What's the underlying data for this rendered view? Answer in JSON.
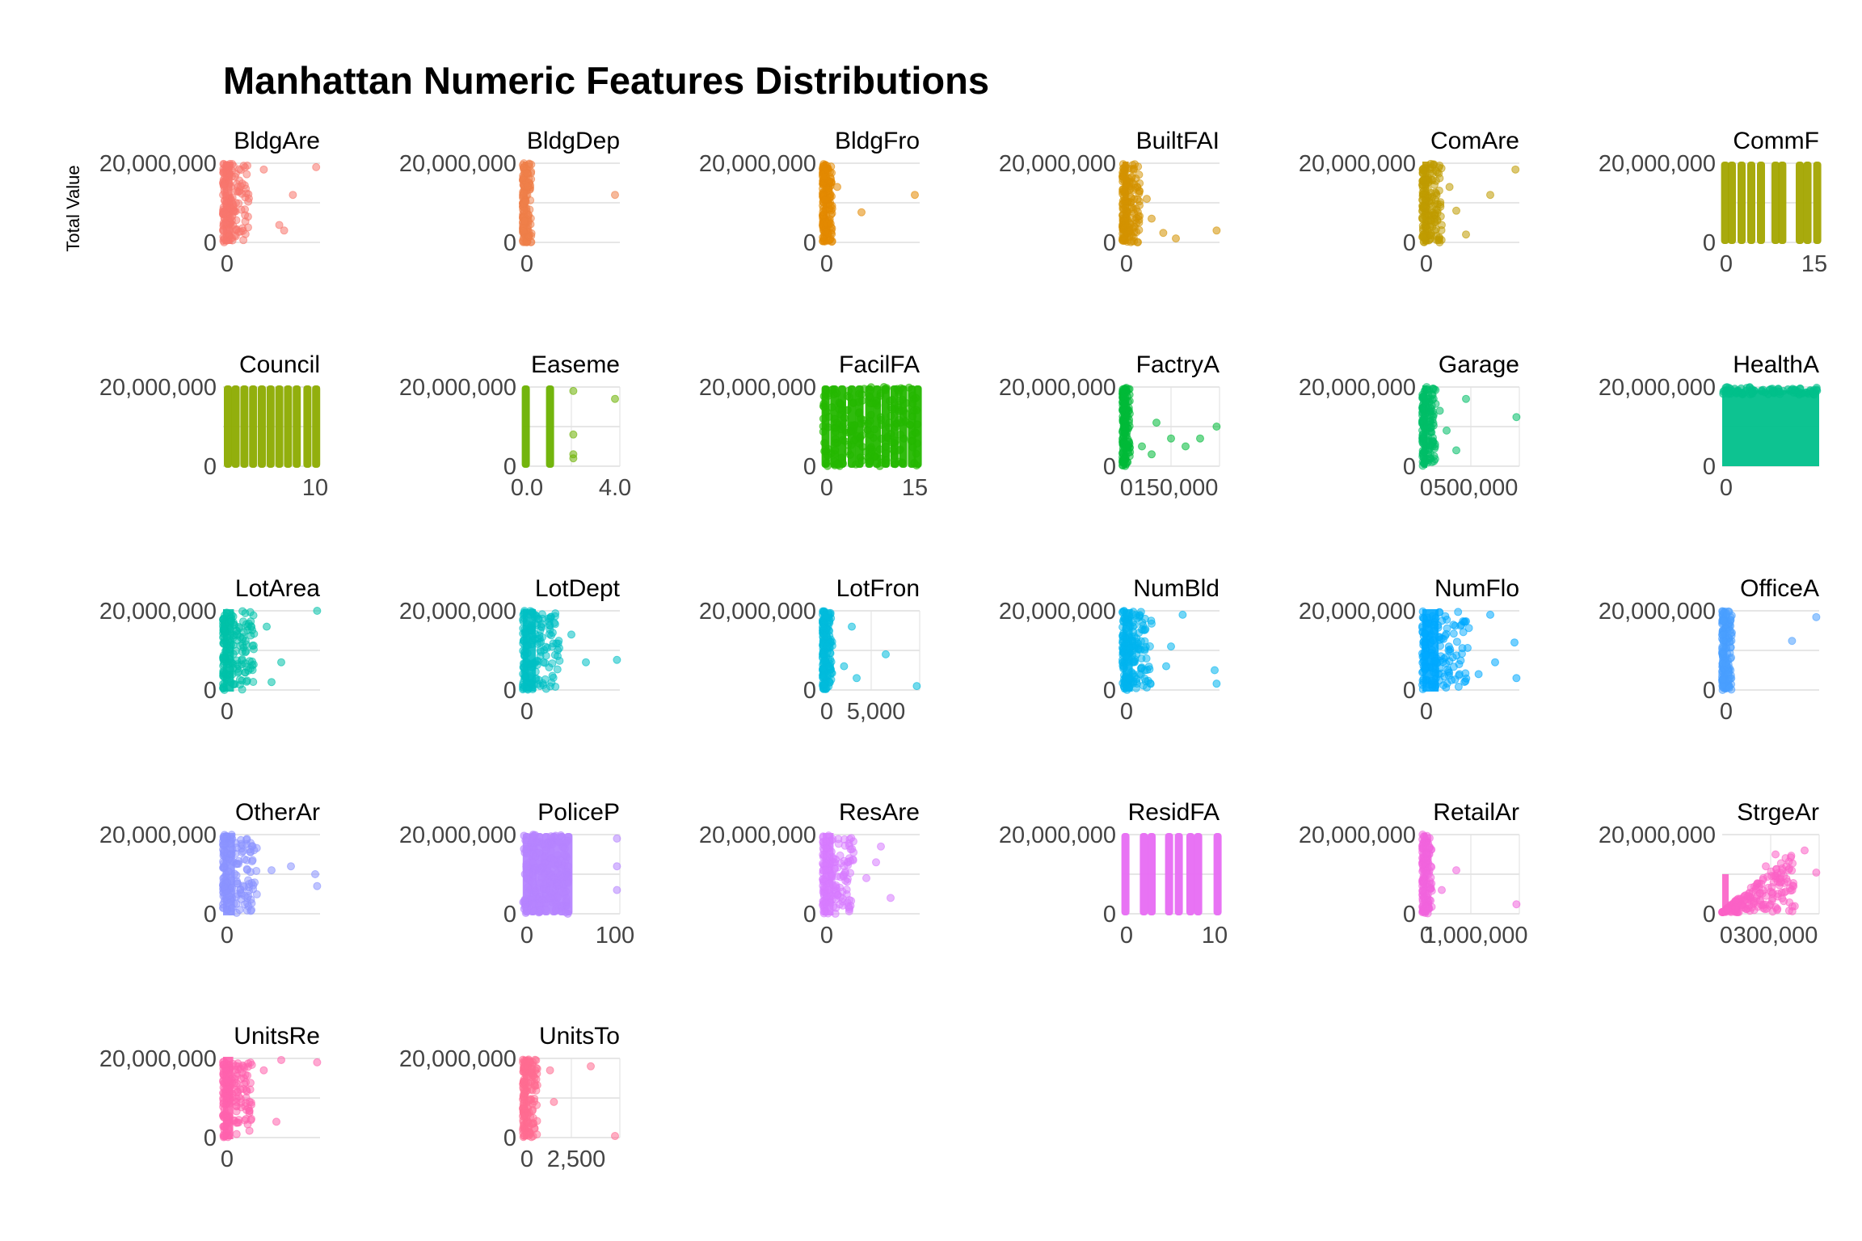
{
  "chart_data": {
    "type": "scatter",
    "title": "Manhattan Numeric Features Distributions",
    "ylabel": "Total Value",
    "y_tick_labels": [
      "0",
      "20,000,000"
    ],
    "ylim": [
      0,
      20000000
    ],
    "grid": true,
    "facets": [
      {
        "label": "BldgAre",
        "color": "#F8766D",
        "x_ticks": [
          "0"
        ],
        "shape": "dense-left",
        "band": 0.28,
        "outliers": [
          [
            0.42,
            0.92
          ],
          [
            0.72,
            0.6
          ],
          [
            0.58,
            0.22
          ],
          [
            0.96,
            0.95
          ],
          [
            0.63,
            0.15
          ]
        ]
      },
      {
        "label": "BldgDep",
        "color": "#EF7F49",
        "x_ticks": [
          "0"
        ],
        "shape": "dense-left",
        "band": 0.09,
        "outliers": [
          [
            0.95,
            0.6
          ]
        ]
      },
      {
        "label": "BldgFro",
        "color": "#E38900",
        "x_ticks": [
          "0"
        ],
        "shape": "dense-left",
        "band": 0.1,
        "outliers": [
          [
            0.95,
            0.6
          ],
          [
            0.4,
            0.38
          ],
          [
            0.15,
            0.7
          ]
        ]
      },
      {
        "label": "BuiltFAI",
        "color": "#D39200",
        "x_ticks": [
          "0"
        ],
        "shape": "dense-left",
        "band": 0.18,
        "outliers": [
          [
            0.3,
            0.3
          ],
          [
            0.42,
            0.12
          ],
          [
            0.55,
            0.05
          ],
          [
            0.97,
            0.15
          ],
          [
            0.25,
            0.55
          ]
        ]
      },
      {
        "label": "ComAre",
        "color": "#C09B00",
        "x_ticks": [
          "0"
        ],
        "shape": "dense-left",
        "band": 0.2,
        "outliers": [
          [
            0.7,
            0.6
          ],
          [
            0.96,
            0.92
          ],
          [
            0.45,
            0.1
          ],
          [
            0.28,
            0.7
          ],
          [
            0.35,
            0.4
          ]
        ]
      },
      {
        "label": "CommF",
        "color": "#A3A500",
        "x_ticks": [
          "0",
          "15"
        ],
        "shape": "columns",
        "cols": [
          0.03,
          0.1,
          0.2,
          0.3,
          0.4,
          0.55,
          0.62,
          0.8,
          0.88,
          0.98
        ]
      },
      {
        "label": "Council",
        "color": "#8CAB00",
        "x_ticks": [
          "10"
        ],
        "shape": "columns",
        "cols": [
          0.05,
          0.13,
          0.22,
          0.31,
          0.4,
          0.49,
          0.58,
          0.67,
          0.76,
          0.87,
          0.96
        ]
      },
      {
        "label": "Easeme",
        "color": "#6BB100",
        "x_ticks": [
          "0.0",
          "4.0"
        ],
        "shape": "columns",
        "cols": [
          0.03,
          0.28
        ],
        "outliers": [
          [
            0.52,
            0.95
          ],
          [
            0.95,
            0.85
          ],
          [
            0.52,
            0.4
          ],
          [
            0.52,
            0.15
          ],
          [
            0.52,
            0.1
          ]
        ]
      },
      {
        "label": "FacilFA",
        "color": "#24B700",
        "x_ticks": [
          "0",
          "15"
        ],
        "shape": "dense-cols",
        "cols": [
          0.03,
          0.12,
          0.2,
          0.3,
          0.38,
          0.48,
          0.56,
          0.65,
          0.74,
          0.83,
          0.92,
          0.98
        ]
      },
      {
        "label": "FactryA",
        "color": "#00BA38",
        "x_ticks": [
          "0",
          "150,000"
        ],
        "shape": "dense-left",
        "band": 0.08,
        "outliers": [
          [
            0.35,
            0.55
          ],
          [
            0.5,
            0.35
          ],
          [
            0.65,
            0.25
          ],
          [
            0.8,
            0.35
          ],
          [
            0.97,
            0.5
          ],
          [
            0.3,
            0.15
          ],
          [
            0.2,
            0.25
          ]
        ]
      },
      {
        "label": "Garage",
        "color": "#00BE67",
        "x_ticks": [
          "0",
          "500,000"
        ],
        "shape": "dense-left",
        "band": 0.14,
        "outliers": [
          [
            0.45,
            0.85
          ],
          [
            0.97,
            0.62
          ],
          [
            0.25,
            0.45
          ],
          [
            0.35,
            0.2
          ],
          [
            0.18,
            0.7
          ]
        ]
      },
      {
        "label": "HealthA",
        "color": "#00C08B",
        "x_ticks": [
          "0"
        ],
        "shape": "solid-fill"
      },
      {
        "label": "LotArea",
        "color": "#00C1A9",
        "x_ticks": [
          "0"
        ],
        "shape": "dense-left",
        "band": 0.32,
        "outliers": [
          [
            0.6,
            0.35
          ],
          [
            0.97,
            1.0
          ],
          [
            0.5,
            0.1
          ],
          [
            0.45,
            0.8
          ]
        ]
      },
      {
        "label": "LotDept",
        "color": "#00BFC4",
        "x_ticks": [
          "0"
        ],
        "shape": "dense-left",
        "band": 0.38,
        "outliers": [
          [
            0.65,
            0.35
          ],
          [
            0.97,
            0.38
          ],
          [
            0.5,
            0.7
          ]
        ]
      },
      {
        "label": "LotFron",
        "color": "#00BBDC",
        "x_ticks": [
          "0",
          "5,000"
        ],
        "shape": "dense-left",
        "band": 0.1,
        "outliers": [
          [
            0.3,
            0.8
          ],
          [
            0.65,
            0.45
          ],
          [
            0.97,
            0.05
          ],
          [
            0.35,
            0.15
          ],
          [
            0.22,
            0.3
          ]
        ]
      },
      {
        "label": "NumBld",
        "color": "#00B4EF",
        "x_ticks": [
          "0"
        ],
        "shape": "dense-left",
        "band": 0.3,
        "outliers": [
          [
            0.5,
            0.55
          ],
          [
            0.62,
            0.95
          ],
          [
            0.95,
            0.25
          ],
          [
            0.97,
            0.08
          ],
          [
            0.45,
            0.3
          ]
        ]
      },
      {
        "label": "NumFlo",
        "color": "#00A9FF",
        "x_ticks": [
          "0"
        ],
        "shape": "dense-left",
        "band": 0.48,
        "outliers": [
          [
            0.7,
            0.95
          ],
          [
            0.75,
            0.35
          ],
          [
            0.95,
            0.6
          ],
          [
            0.97,
            0.15
          ],
          [
            0.58,
            0.2
          ]
        ]
      },
      {
        "label": "OfficeA",
        "color": "#4A9FFF",
        "x_ticks": [
          "0"
        ],
        "shape": "dense-left",
        "band": 0.1,
        "outliers": [
          [
            0.72,
            0.62
          ],
          [
            0.97,
            0.92
          ]
        ]
      },
      {
        "label": "OtherAr",
        "color": "#8B93FF",
        "x_ticks": [
          "0"
        ],
        "shape": "dense-left",
        "band": 0.35,
        "outliers": [
          [
            0.7,
            0.6
          ],
          [
            0.95,
            0.5
          ],
          [
            0.97,
            0.35
          ],
          [
            0.5,
            0.55
          ]
        ]
      },
      {
        "label": "PoliceP",
        "color": "#B584FF",
        "x_ticks": [
          "0",
          "100"
        ],
        "shape": "dense-cols",
        "cols": [
          0.04,
          0.1,
          0.17,
          0.24,
          0.32,
          0.4,
          0.47
        ],
        "outliers": [
          [
            0.45,
            0.5
          ],
          [
            0.97,
            0.95
          ],
          [
            0.97,
            0.6
          ],
          [
            0.97,
            0.3
          ],
          [
            0.45,
            0.1
          ]
        ]
      },
      {
        "label": "ResAre",
        "color": "#D77BFF",
        "x_ticks": [
          "0"
        ],
        "shape": "dense-left",
        "band": 0.32,
        "outliers": [
          [
            0.6,
            0.85
          ],
          [
            0.7,
            0.2
          ],
          [
            0.45,
            0.45
          ],
          [
            0.55,
            0.65
          ]
        ]
      },
      {
        "label": "ResidFA",
        "color": "#E76BF3",
        "x_ticks": [
          "0",
          "10"
        ],
        "shape": "columns",
        "cols": [
          0.03,
          0.22,
          0.3,
          0.48,
          0.58,
          0.7,
          0.78,
          0.98
        ]
      },
      {
        "label": "RetailAr",
        "color": "#F164DD",
        "x_ticks": [
          "0",
          "1,000,000"
        ],
        "shape": "dense-left",
        "band": 0.1,
        "outliers": [
          [
            0.35,
            0.55
          ],
          [
            0.97,
            0.12
          ],
          [
            0.2,
            0.3
          ]
        ]
      },
      {
        "label": "StrgeAr",
        "color": "#FB61C6",
        "x_ticks": [
          "0",
          "300,000"
        ],
        "shape": "rising-cloud",
        "outliers": [
          [
            0.97,
            0.52
          ],
          [
            0.85,
            0.8
          ],
          [
            0.55,
            0.75
          ],
          [
            0.45,
            0.6
          ]
        ]
      },
      {
        "label": "UnitsRe",
        "color": "#FF62AD",
        "x_ticks": [
          "0"
        ],
        "shape": "dense-left",
        "band": 0.3,
        "outliers": [
          [
            0.6,
            0.98
          ],
          [
            0.55,
            0.2
          ],
          [
            0.97,
            0.95
          ],
          [
            0.42,
            0.85
          ]
        ]
      },
      {
        "label": "UnitsTo",
        "color": "#FF6C91",
        "x_ticks": [
          "0",
          "2,500"
        ],
        "shape": "dense-left",
        "band": 0.15,
        "outliers": [
          [
            0.7,
            0.9
          ],
          [
            0.95,
            0.02
          ],
          [
            0.32,
            0.45
          ],
          [
            0.28,
            0.85
          ]
        ]
      }
    ]
  }
}
